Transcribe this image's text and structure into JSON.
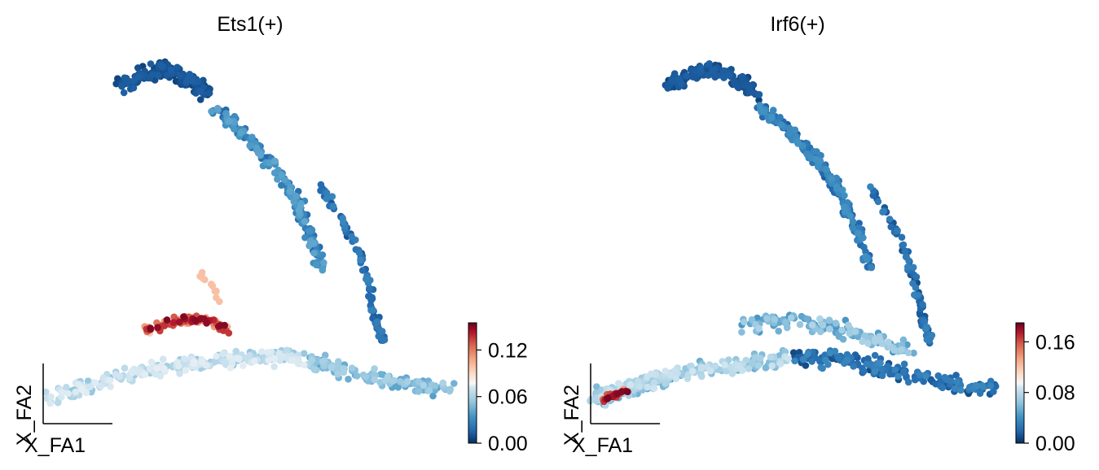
{
  "chart_data": [
    {
      "type": "scatter",
      "title": "Ets1(+)",
      "xlabel": "X_FA1",
      "ylabel": "X_FA2",
      "colormap": "RdBu_r",
      "colorbar": {
        "ticks": [
          0.0,
          0.06,
          0.12
        ],
        "tick_labels": [
          "0.00",
          "0.06",
          "0.12"
        ],
        "range": [
          0.0,
          0.155
        ]
      },
      "grid": false
    },
    {
      "type": "scatter",
      "title": "Irf6(+)",
      "xlabel": "X_FA1",
      "ylabel": "X_FA2",
      "colormap": "RdBu_r",
      "colorbar": {
        "ticks": [
          0.0,
          0.08,
          0.16
        ],
        "tick_labels": [
          "0.00",
          "0.08",
          "0.16"
        ],
        "range": [
          0.0,
          0.19
        ]
      },
      "grid": false
    }
  ]
}
